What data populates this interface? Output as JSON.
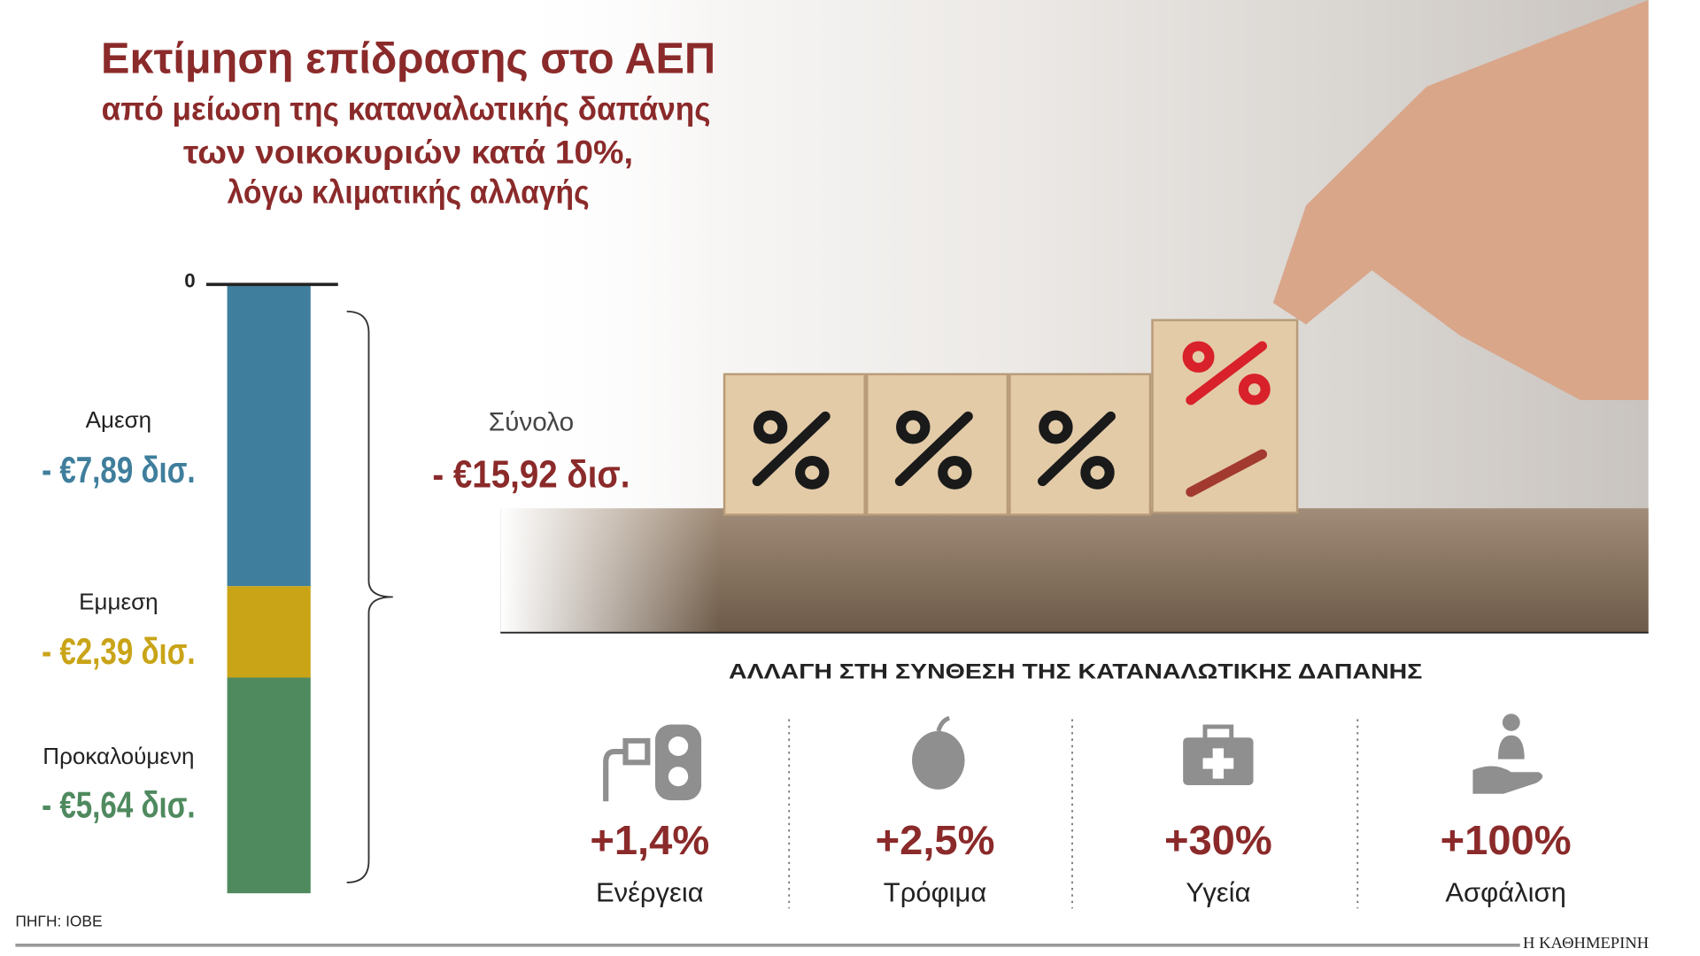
{
  "title": "Εκτίμηση επίδρασης στο ΑΕΠ",
  "subtitle": [
    "από μείωση της καταναλωτικής δαπάνης",
    "των νοικοκυριών κατά 10%,",
    "λόγω κλιματικής αλλαγής"
  ],
  "chart_data": {
    "type": "bar",
    "stacked": true,
    "categories": [
      null
    ],
    "series": [
      {
        "name": "Αμεση",
        "color": "#3f7e9c",
        "values": [
          -7.89
        ],
        "value_labels": [
          "- €7,89 δισ."
        ]
      },
      {
        "name": "Εμμεση",
        "color": "#c9a417",
        "values": [
          -2.39
        ],
        "value_labels": [
          "- €2,39 δισ."
        ]
      },
      {
        "name": "Προκαλούμενη",
        "color": "#4f8a5f",
        "values": [
          -5.64
        ],
        "value_labels": [
          "- €5,64 δισ."
        ]
      }
    ],
    "ylim": [
      -15.92,
      0
    ],
    "yticks": [
      0
    ],
    "total": {
      "name": "Σύνολο",
      "value": -15.92,
      "label": "- €15,92 δισ."
    }
  },
  "composition": {
    "title": "ΑΛΛΑΓΗ ΣΤΗ ΣΥΝΘΕΣΗ ΤΗΣ ΚΑΤΑΝΑΛΩΤΙΚΗΣ ΔΑΠΑΝΗΣ",
    "items": [
      {
        "value": "+1,4%",
        "label": "Ενέργεια"
      },
      {
        "value": "+2,5%",
        "label": "Τρόφιμα"
      },
      {
        "value": "+30%",
        "label": "Υγεία"
      },
      {
        "value": "+100%",
        "label": "Ασφάλιση"
      }
    ]
  },
  "source": "ΠΗΓΗ: ΙΟΒΕ",
  "brand": "Η ΚΑΘΗΜΕΡΙΝΗ"
}
